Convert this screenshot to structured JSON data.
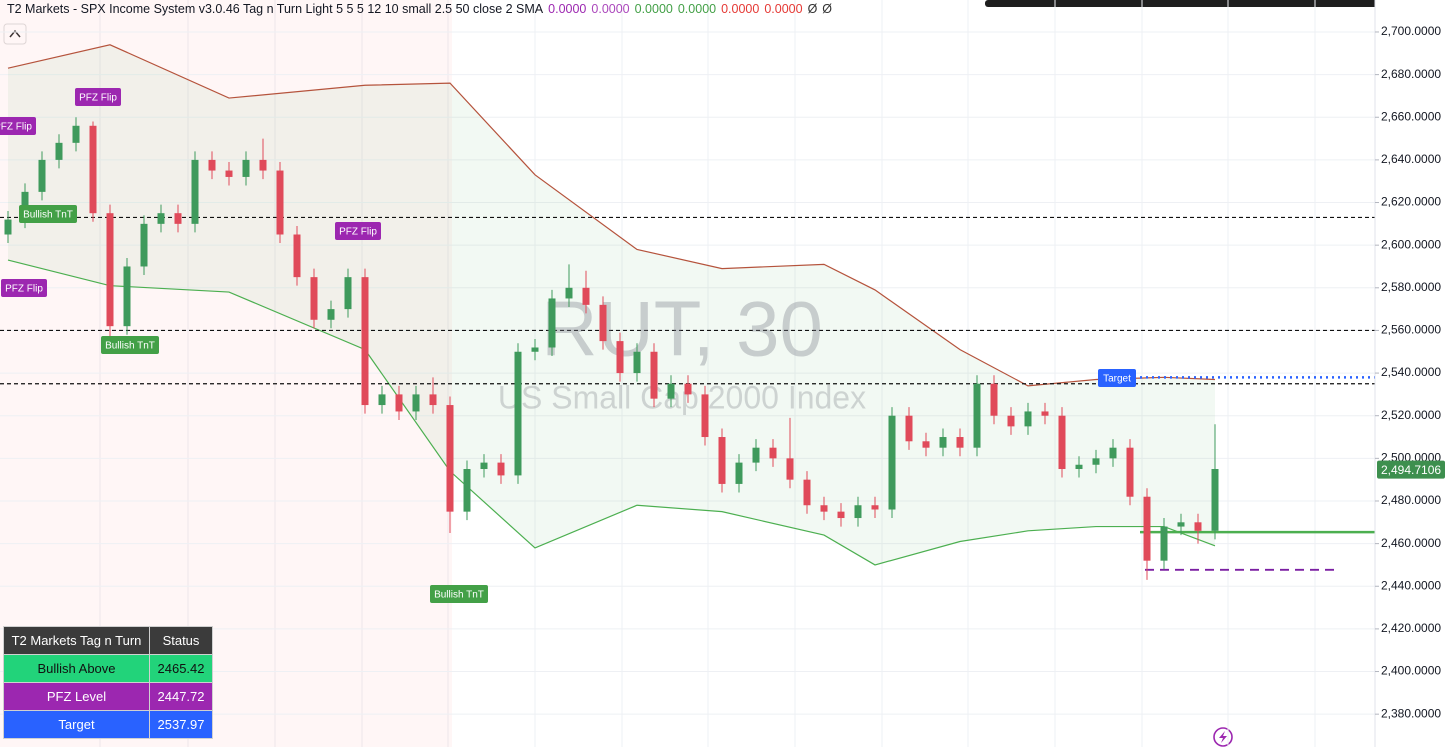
{
  "header": {
    "title": "T2 Markets - SPX Income System v3.0.46 Tag n Turn Light 5 5 5 12 10 small 2.5 50 close 2 SMA",
    "indicator_values": [
      {
        "text": "0.0000",
        "color": "#9c27b0"
      },
      {
        "text": "0.0000",
        "color": "#ab47bc"
      },
      {
        "text": "0.0000",
        "color": "#43a047"
      },
      {
        "text": "0.0000",
        "color": "#43a047"
      },
      {
        "text": "0.0000",
        "color": "#e53935"
      },
      {
        "text": "0.0000",
        "color": "#e53935"
      },
      {
        "text": "Ø",
        "color": "#333333"
      },
      {
        "text": "Ø",
        "color": "#333333"
      }
    ]
  },
  "chart_data": {
    "type": "candlestick",
    "symbol": "RUT, 30",
    "description": "US Small Cap 2000 Index",
    "ylim": [
      2364.6,
      2715
    ],
    "yticks": [
      {
        "value": 2380,
        "label": "2,380.0000"
      },
      {
        "value": 2400,
        "label": "2,400.0000"
      },
      {
        "value": 2420,
        "label": "2,420.0000"
      },
      {
        "value": 2440,
        "label": "2,440.0000"
      },
      {
        "value": 2460,
        "label": "2,460.0000"
      },
      {
        "value": 2480,
        "label": "2,480.0000"
      },
      {
        "value": 2500,
        "label": "2,500.0000"
      },
      {
        "value": 2520,
        "label": "2,520.0000"
      },
      {
        "value": 2540,
        "label": "2,540.0000"
      },
      {
        "value": 2560,
        "label": "2,560.0000"
      },
      {
        "value": 2580,
        "label": "2,580.0000"
      },
      {
        "value": 2600,
        "label": "2,600.0000"
      },
      {
        "value": 2620,
        "label": "2,620.0000"
      },
      {
        "value": 2640,
        "label": "2,640.0000"
      },
      {
        "value": 2660,
        "label": "2,660.0000"
      },
      {
        "value": 2680,
        "label": "2,680.0000"
      },
      {
        "value": 2700,
        "label": "2,700.0000"
      }
    ],
    "grid": true,
    "up_color": "#3f9a5c",
    "down_color": "#e04a5a",
    "candles": [
      [
        2605,
        2616,
        2601,
        2612
      ],
      [
        2612,
        2629,
        2608,
        2625
      ],
      [
        2625,
        2644,
        2621,
        2640
      ],
      [
        2640,
        2652,
        2636,
        2648
      ],
      [
        2648,
        2660,
        2644,
        2656
      ],
      [
        2656,
        2658,
        2611,
        2615
      ],
      [
        2615,
        2619,
        2556,
        2562
      ],
      [
        2562,
        2594,
        2558,
        2590
      ],
      [
        2590,
        2614,
        2586,
        2610
      ],
      [
        2610,
        2619,
        2606,
        2615
      ],
      [
        2615,
        2619,
        2606,
        2610
      ],
      [
        2610,
        2644,
        2606,
        2640
      ],
      [
        2640,
        2644,
        2631,
        2635
      ],
      [
        2635,
        2639,
        2628,
        2632
      ],
      [
        2632,
        2644,
        2628,
        2640
      ],
      [
        2640,
        2650,
        2631,
        2635
      ],
      [
        2635,
        2639,
        2601,
        2605
      ],
      [
        2605,
        2609,
        2581,
        2585
      ],
      [
        2585,
        2589,
        2561,
        2565
      ],
      [
        2565,
        2574,
        2561,
        2570
      ],
      [
        2570,
        2589,
        2566,
        2585
      ],
      [
        2585,
        2589,
        2521,
        2525
      ],
      [
        2525,
        2534,
        2521,
        2530
      ],
      [
        2530,
        2534,
        2518,
        2522
      ],
      [
        2522,
        2534,
        2518,
        2530
      ],
      [
        2530,
        2538,
        2521,
        2525
      ],
      [
        2525,
        2529,
        2465,
        2475
      ],
      [
        2475,
        2499,
        2471,
        2495
      ],
      [
        2495,
        2502,
        2491,
        2498
      ],
      [
        2498,
        2502,
        2488,
        2492
      ],
      [
        2492,
        2554,
        2488,
        2550
      ],
      [
        2550,
        2556,
        2546,
        2552
      ],
      [
        2552,
        2579,
        2548,
        2575
      ],
      [
        2575,
        2591,
        2571,
        2580
      ],
      [
        2580,
        2588,
        2568,
        2572
      ],
      [
        2572,
        2576,
        2551,
        2555
      ],
      [
        2555,
        2559,
        2536,
        2540
      ],
      [
        2540,
        2554,
        2536,
        2550
      ],
      [
        2550,
        2554,
        2524,
        2528
      ],
      [
        2528,
        2539,
        2524,
        2535
      ],
      [
        2535,
        2539,
        2526,
        2530
      ],
      [
        2530,
        2534,
        2506,
        2510
      ],
      [
        2510,
        2514,
        2484,
        2488
      ],
      [
        2488,
        2502,
        2484,
        2498
      ],
      [
        2498,
        2509,
        2494,
        2505
      ],
      [
        2505,
        2509,
        2496,
        2500
      ],
      [
        2500,
        2519,
        2486,
        2490
      ],
      [
        2490,
        2494,
        2474,
        2478
      ],
      [
        2478,
        2482,
        2471,
        2475
      ],
      [
        2475,
        2479,
        2468,
        2472
      ],
      [
        2472,
        2482,
        2468,
        2478
      ],
      [
        2478,
        2482,
        2472,
        2476
      ],
      [
        2476,
        2524,
        2472,
        2520
      ],
      [
        2520,
        2524,
        2504,
        2508
      ],
      [
        2508,
        2512,
        2501,
        2505
      ],
      [
        2505,
        2514,
        2501,
        2510
      ],
      [
        2510,
        2514,
        2501,
        2505
      ],
      [
        2505,
        2539,
        2501,
        2535
      ],
      [
        2535,
        2539,
        2516,
        2520
      ],
      [
        2520,
        2524,
        2511,
        2515
      ],
      [
        2515,
        2526,
        2511,
        2522
      ],
      [
        2522,
        2526,
        2516,
        2520
      ],
      [
        2520,
        2524,
        2491,
        2495
      ],
      [
        2495,
        2501,
        2491,
        2497
      ],
      [
        2497,
        2504,
        2493,
        2500
      ],
      [
        2500,
        2509,
        2496,
        2505
      ],
      [
        2505,
        2509,
        2478,
        2482
      ],
      [
        2482,
        2486,
        2443,
        2452
      ],
      [
        2452,
        2472,
        2448,
        2468
      ],
      [
        2468,
        2474,
        2464,
        2470
      ],
      [
        2470,
        2474,
        2460,
        2466
      ],
      [
        2466,
        2516,
        2462,
        2495
      ]
    ],
    "band_index": [
      0,
      6,
      13,
      21,
      26,
      31,
      37,
      42,
      48,
      51,
      56,
      60,
      64,
      68,
      71
    ],
    "upper_band": [
      2683,
      2694,
      2669,
      2675,
      2676,
      2633,
      2598,
      2589,
      2591,
      2579,
      2551,
      2534,
      2537,
      2538,
      2537
    ],
    "lower_band": [
      2593,
      2581,
      2578,
      2551,
      2494,
      2458,
      2478,
      2475,
      2464,
      2450,
      2461,
      2466,
      2468,
      2468,
      2459
    ],
    "upper_color": "#b5533c",
    "lower_color": "#4caf50",
    "levels": [
      2613,
      2560,
      2535
    ],
    "last_price": {
      "value": 2494.7106,
      "label": "2,494.7106"
    },
    "signals": {
      "pfz_flip": "PFZ Flip",
      "bullish_tnt": "Bullish TnT",
      "target": "Target"
    }
  },
  "table": {
    "header": [
      "T2 Markets Tag n Turn",
      "Status"
    ],
    "rows": [
      [
        "Bullish Above",
        2465.42
      ],
      [
        "PFZ Level",
        2447.72
      ],
      [
        "Target",
        2537.97
      ]
    ]
  }
}
